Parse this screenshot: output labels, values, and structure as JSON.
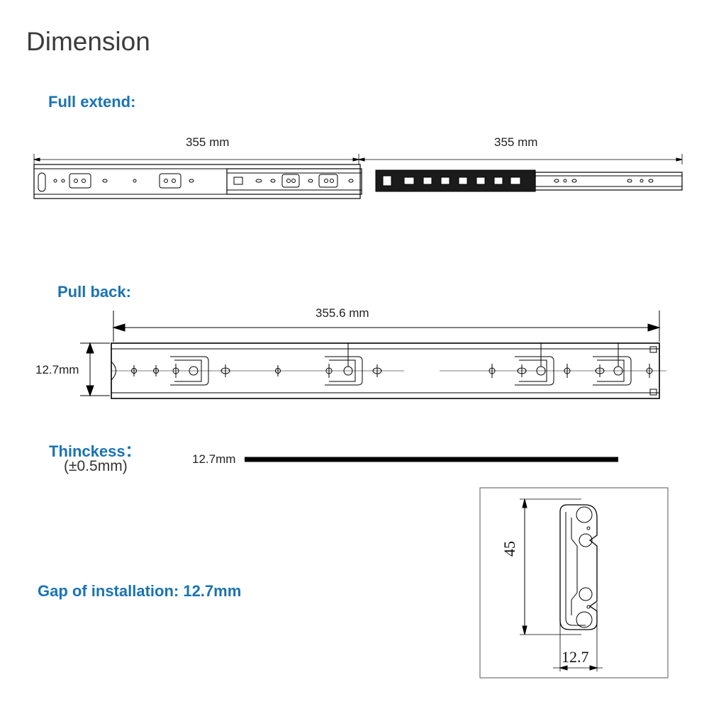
{
  "page_title": "Dimension",
  "full_extend": {
    "label": "Full extend:",
    "dim_left": "355  mm",
    "dim_right": "355  mm"
  },
  "pull_back": {
    "label": "Pull back:",
    "length": "355.6 mm",
    "height": "12.7mm"
  },
  "thickness": {
    "label": "Thinckess：",
    "tolerance": "(±0.5mm)",
    "value": "12.7mm"
  },
  "gap": {
    "label": "Gap of installation: 12.7mm"
  },
  "cross_section": {
    "height_label": "45",
    "width_label": "12.7"
  },
  "colors": {
    "heading": "#1a73b5",
    "title": "#3c3c3c",
    "line": "#000000"
  }
}
